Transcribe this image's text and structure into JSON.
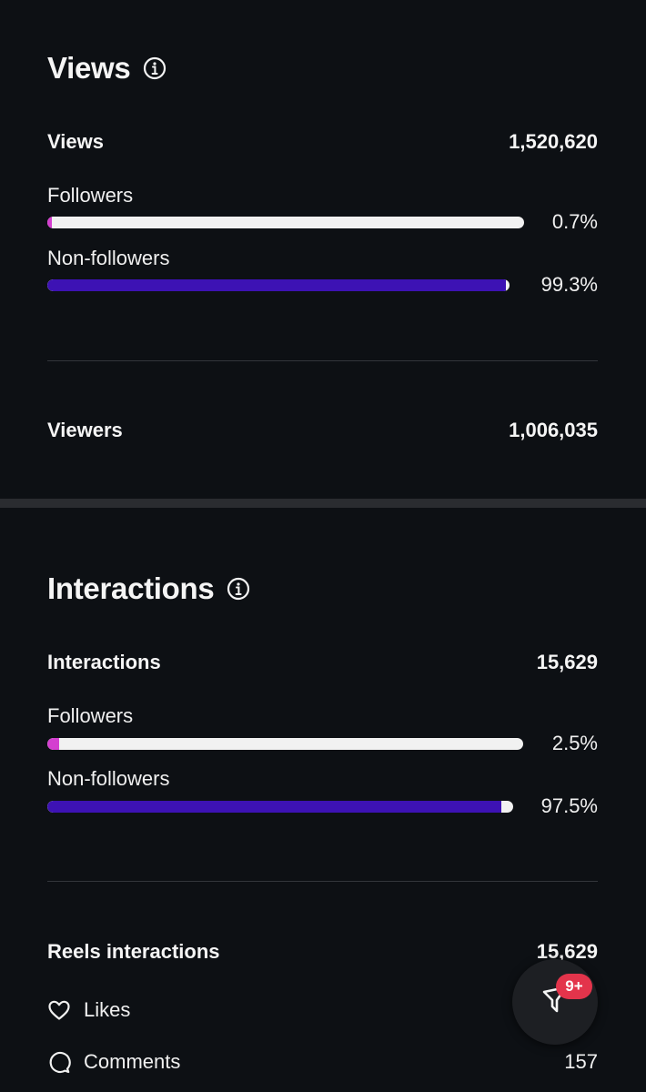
{
  "views": {
    "title": "Views",
    "total_label": "Views",
    "total_value": "1,520,620",
    "followers": {
      "label": "Followers",
      "pct_text": "0.7%",
      "pct": 0.7
    },
    "non_followers": {
      "label": "Non-followers",
      "pct_text": "99.3%",
      "pct": 99.3
    },
    "viewers_label": "Viewers",
    "viewers_value": "1,006,035"
  },
  "interactions": {
    "title": "Interactions",
    "total_label": "Interactions",
    "total_value": "15,629",
    "followers": {
      "label": "Followers",
      "pct_text": "2.5%",
      "pct": 2.5
    },
    "non_followers": {
      "label": "Non-followers",
      "pct_text": "97.5%",
      "pct": 97.5
    },
    "reels_label": "Reels interactions",
    "reels_value": "15,629",
    "items": [
      {
        "icon": "heart-icon",
        "label": "Likes",
        "value": ""
      },
      {
        "icon": "comment-icon",
        "label": "Comments",
        "value": "157"
      }
    ]
  },
  "fab": {
    "icon": "filter-icon",
    "badge": "9+"
  },
  "colors": {
    "background": "#0d1014",
    "followers_bar": "#d43fd0",
    "non_followers_bar": "#3d12b4",
    "track": "#f1f1f1",
    "badge": "#e3344b"
  }
}
